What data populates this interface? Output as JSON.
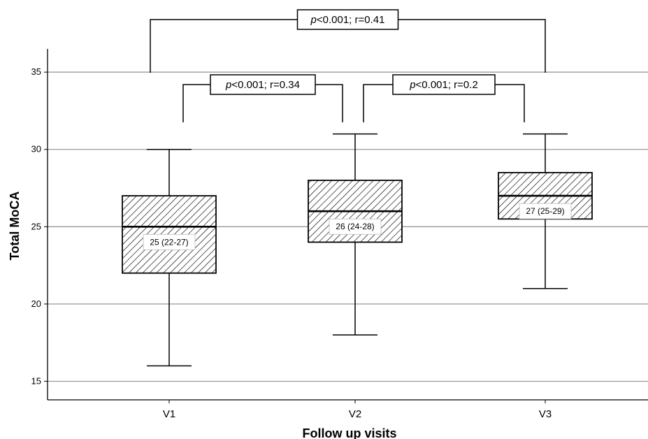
{
  "chart_data": {
    "type": "box",
    "title": "",
    "xlabel": "Follow up visits",
    "ylabel": "Total MoCA",
    "ylim": [
      13.8,
      36.5
    ],
    "yticks": [
      15,
      20,
      25,
      30,
      35
    ],
    "grid": true,
    "categories": [
      "V1",
      "V2",
      "V3"
    ],
    "boxes": [
      {
        "category": "V1",
        "min": 16,
        "q1": 22,
        "median": 25,
        "q3": 27,
        "max": 30,
        "label": "25 (22-27)"
      },
      {
        "category": "V2",
        "min": 18,
        "q1": 24,
        "median": 26,
        "q3": 28,
        "max": 31,
        "label": "26 (24-28)"
      },
      {
        "category": "V3",
        "min": 21,
        "q1": 25.5,
        "median": 27,
        "q3": 28.5,
        "max": 31,
        "label": "27 (25-29)"
      }
    ],
    "comparisons": [
      {
        "from": "V1",
        "to": "V3",
        "p_text": "p",
        "rest_text": "<0.001; r=0.41"
      },
      {
        "from": "V1",
        "to": "V2",
        "p_text": "p",
        "rest_text": "<0.001; r=0.34"
      },
      {
        "from": "V2",
        "to": "V3",
        "p_text": "p",
        "rest_text": "<0.001; r=0.2"
      }
    ],
    "colors": {
      "box_stroke": "#000000",
      "hatch": "#000000",
      "grid": "#999999",
      "background": "#ffffff"
    }
  }
}
